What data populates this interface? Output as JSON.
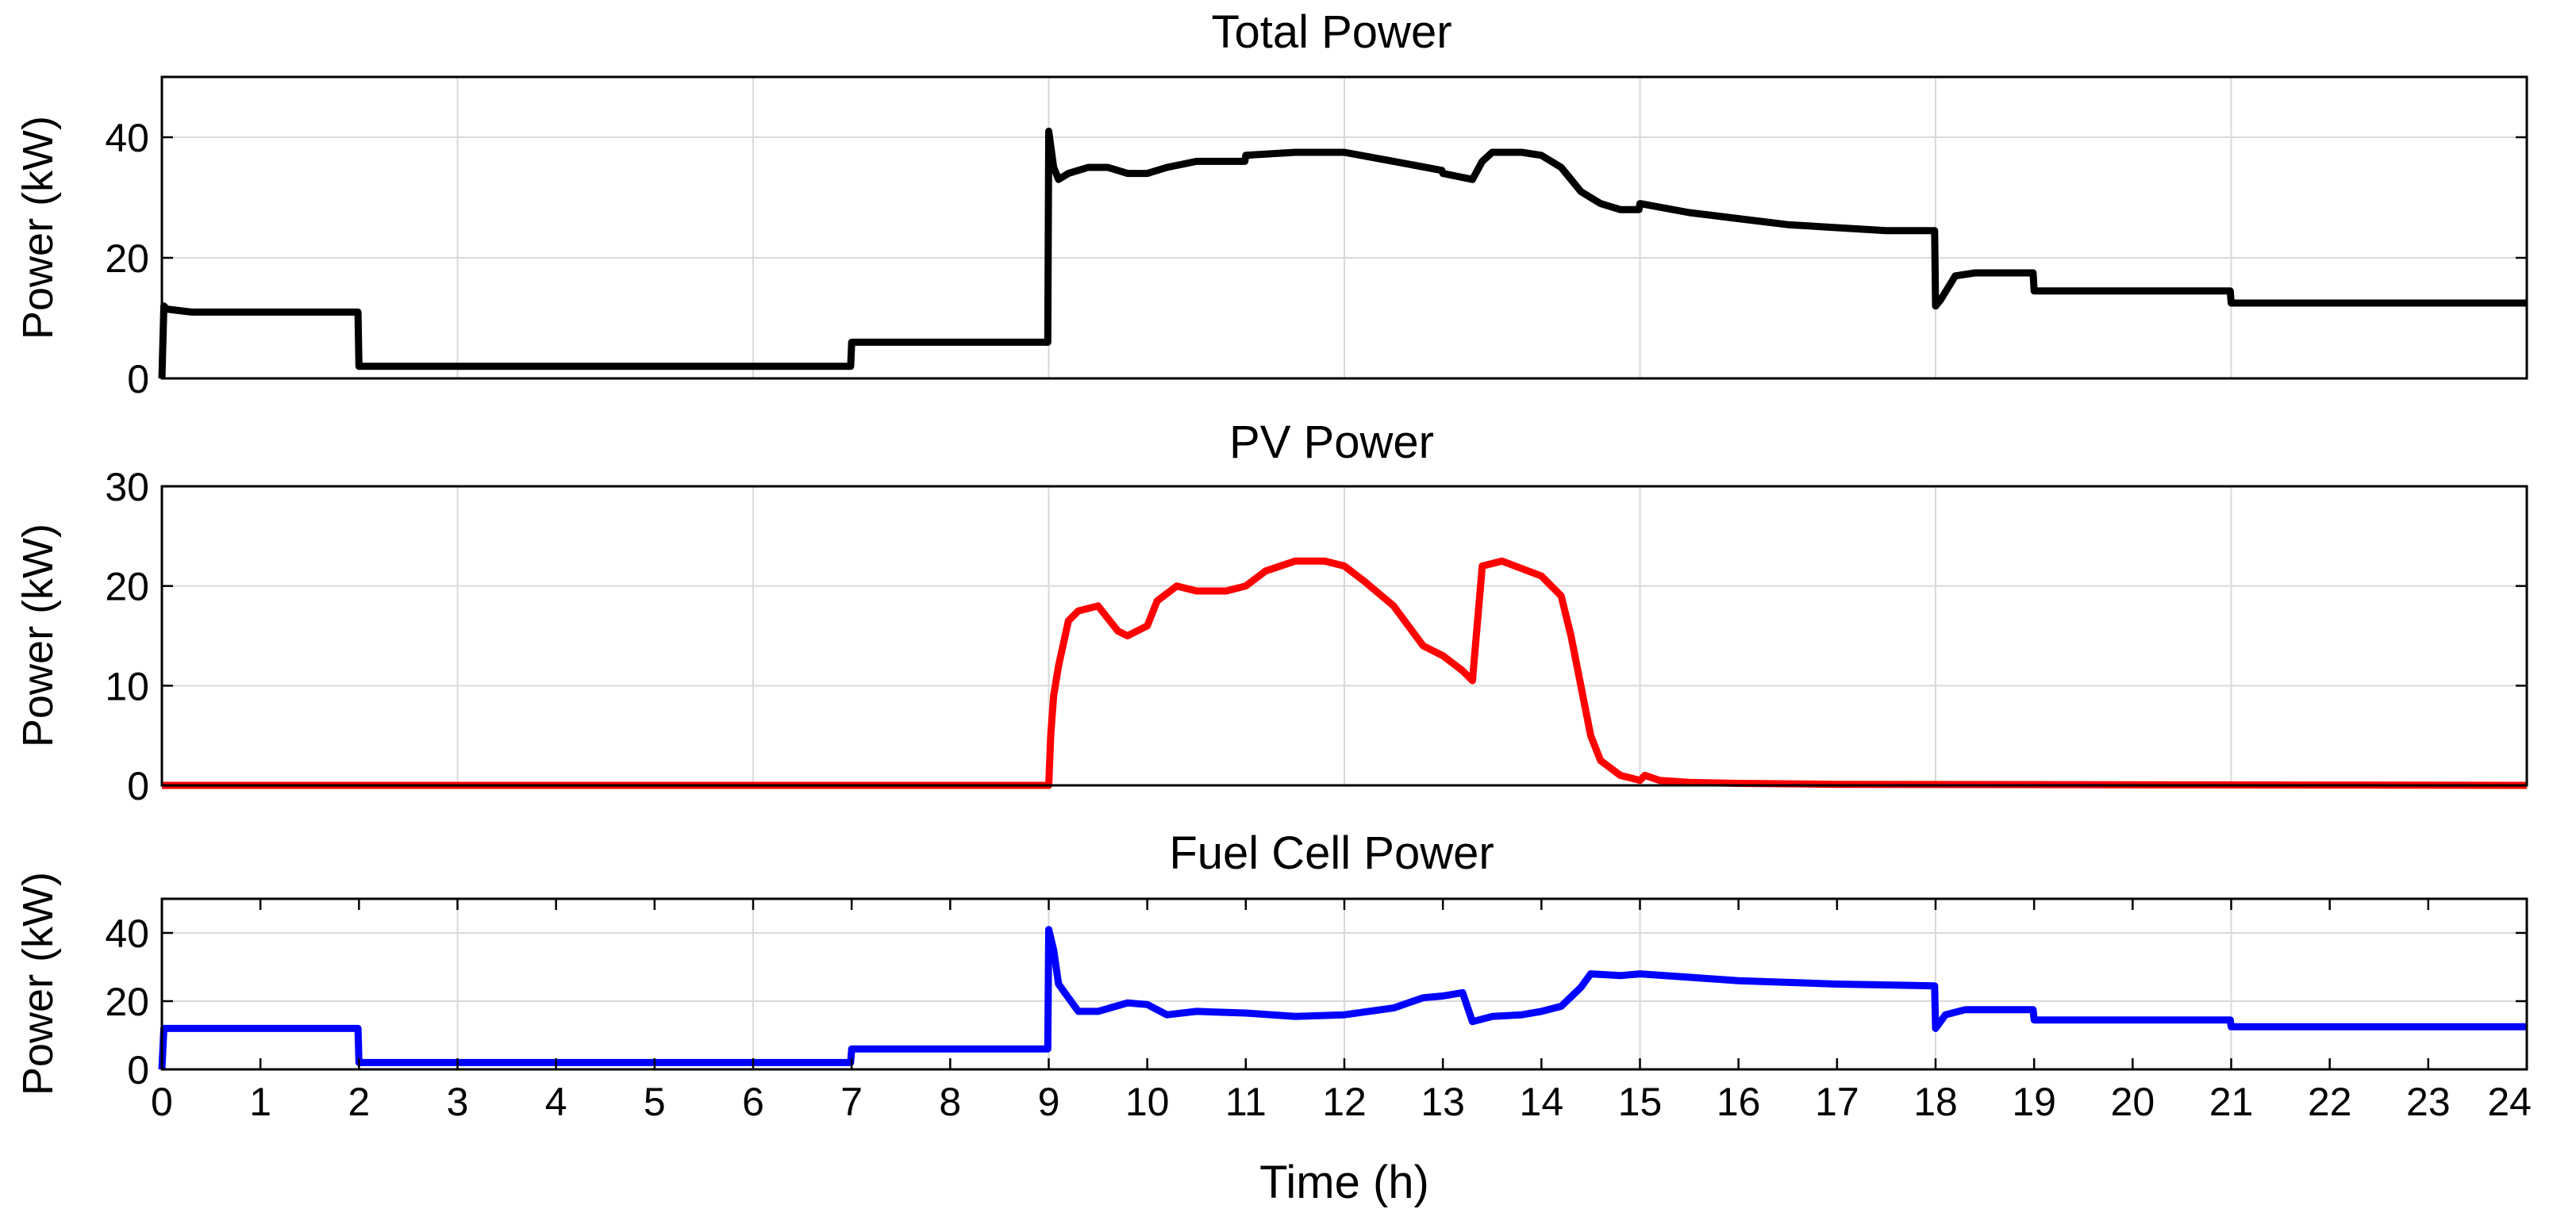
{
  "chart_data": [
    {
      "type": "line",
      "title": "Total Power",
      "ylabel": "Power (kW)",
      "xlabel": "",
      "xlim": [
        0,
        24
      ],
      "ylim": [
        0,
        50
      ],
      "yticks": [
        "0",
        "20",
        "40"
      ],
      "grid": true,
      "series": [
        {
          "name": "Total Power",
          "color": "#000000",
          "x": [
            0,
            0.02,
            0.05,
            0.3,
            1.99,
            2.0,
            6.99,
            7.0,
            8.99,
            9.0,
            9.05,
            9.1,
            9.2,
            9.4,
            9.6,
            9.8,
            10.0,
            10.2,
            10.5,
            10.99,
            11.0,
            11.5,
            12.0,
            12.5,
            12.99,
            13.0,
            13.3,
            13.4,
            13.5,
            13.8,
            14.0,
            14.2,
            14.4,
            14.6,
            14.8,
            14.99,
            15.0,
            15.5,
            16.0,
            16.5,
            17.0,
            17.5,
            17.99,
            18.0,
            18.05,
            18.2,
            18.4,
            18.6,
            18.99,
            19.0,
            19.5,
            20.99,
            21.0,
            22.0,
            24.0
          ],
          "y": [
            0,
            12,
            11.5,
            11,
            11,
            2,
            2,
            6,
            6,
            41,
            35,
            33,
            34,
            35,
            35,
            34,
            34,
            35,
            36,
            36,
            37,
            37.5,
            37.5,
            36,
            34.5,
            34,
            33,
            36,
            37.5,
            37.5,
            37,
            35,
            31,
            29,
            28,
            28,
            29,
            27.5,
            26.5,
            25.5,
            25,
            24.5,
            24.5,
            12,
            13,
            17,
            17.5,
            17.5,
            17.5,
            14.5,
            14.5,
            14.5,
            12.5,
            12.5,
            12.5
          ]
        }
      ]
    },
    {
      "type": "line",
      "title": "PV Power",
      "ylabel": "Power (kW)",
      "xlabel": "",
      "xlim": [
        0,
        24
      ],
      "ylim": [
        0,
        30
      ],
      "yticks": [
        "0",
        "10",
        "20",
        "30"
      ],
      "grid": true,
      "series": [
        {
          "name": "PV Power",
          "color": "#ff0000",
          "x": [
            0,
            9.0,
            9.02,
            9.05,
            9.1,
            9.2,
            9.3,
            9.5,
            9.7,
            9.8,
            10.0,
            10.1,
            10.3,
            10.5,
            10.8,
            11.0,
            11.2,
            11.5,
            11.8,
            12.0,
            12.2,
            12.5,
            12.8,
            13.0,
            13.2,
            13.3,
            13.4,
            13.6,
            14.0,
            14.2,
            14.3,
            14.4,
            14.5,
            14.6,
            14.8,
            15.0,
            15.05,
            15.2,
            15.5,
            16.0,
            17.0,
            24.0
          ],
          "y": [
            0,
            0,
            5,
            9,
            12,
            16.5,
            17.5,
            18,
            15.5,
            15,
            16,
            18.5,
            20,
            19.5,
            19.5,
            20,
            21.5,
            22.5,
            22.5,
            22,
            20.5,
            18,
            14,
            13,
            11.5,
            10.5,
            22,
            22.5,
            21,
            19,
            15,
            10,
            5,
            2.5,
            1,
            0.5,
            1,
            0.5,
            0.3,
            0.2,
            0.1,
            0
          ]
        }
      ]
    },
    {
      "type": "line",
      "title": "Fuel Cell Power",
      "ylabel": "Power (kW)",
      "xlabel": "Time (h)",
      "xlim": [
        0,
        24
      ],
      "ylim": [
        0,
        50
      ],
      "yticks": [
        "0",
        "20",
        "40"
      ],
      "xticks": [
        "0",
        "1",
        "2",
        "3",
        "4",
        "5",
        "6",
        "7",
        "8",
        "9",
        "10",
        "11",
        "12",
        "13",
        "14",
        "15",
        "16",
        "17",
        "18",
        "19",
        "20",
        "21",
        "22",
        "23",
        "24"
      ],
      "grid": true,
      "series": [
        {
          "name": "Fuel Cell Power",
          "color": "#0000ff",
          "x": [
            0,
            0.02,
            0.3,
            1.99,
            2.0,
            6.99,
            7.0,
            8.99,
            9.0,
            9.05,
            9.1,
            9.2,
            9.3,
            9.5,
            9.8,
            10.0,
            10.2,
            10.5,
            11.0,
            11.5,
            12.0,
            12.5,
            12.8,
            13.0,
            13.2,
            13.3,
            13.5,
            13.8,
            14.0,
            14.2,
            14.4,
            14.5,
            14.8,
            15.0,
            15.5,
            16.0,
            17.0,
            17.99,
            18.0,
            18.1,
            18.3,
            18.6,
            18.99,
            19.0,
            20.0,
            20.99,
            21.0,
            24.0
          ],
          "y": [
            0,
            12,
            12,
            12,
            2,
            2,
            6,
            6,
            41,
            35,
            25,
            21,
            17,
            17,
            19.5,
            19,
            16,
            17,
            16.5,
            15.5,
            16,
            18,
            21,
            21.5,
            22.5,
            14,
            15.5,
            16,
            17,
            18.5,
            24,
            28,
            27.5,
            28,
            27,
            26,
            25,
            24.5,
            12,
            16,
            17.5,
            17.5,
            17.5,
            14.5,
            14.5,
            14.5,
            12.5,
            12.5
          ]
        }
      ]
    }
  ]
}
